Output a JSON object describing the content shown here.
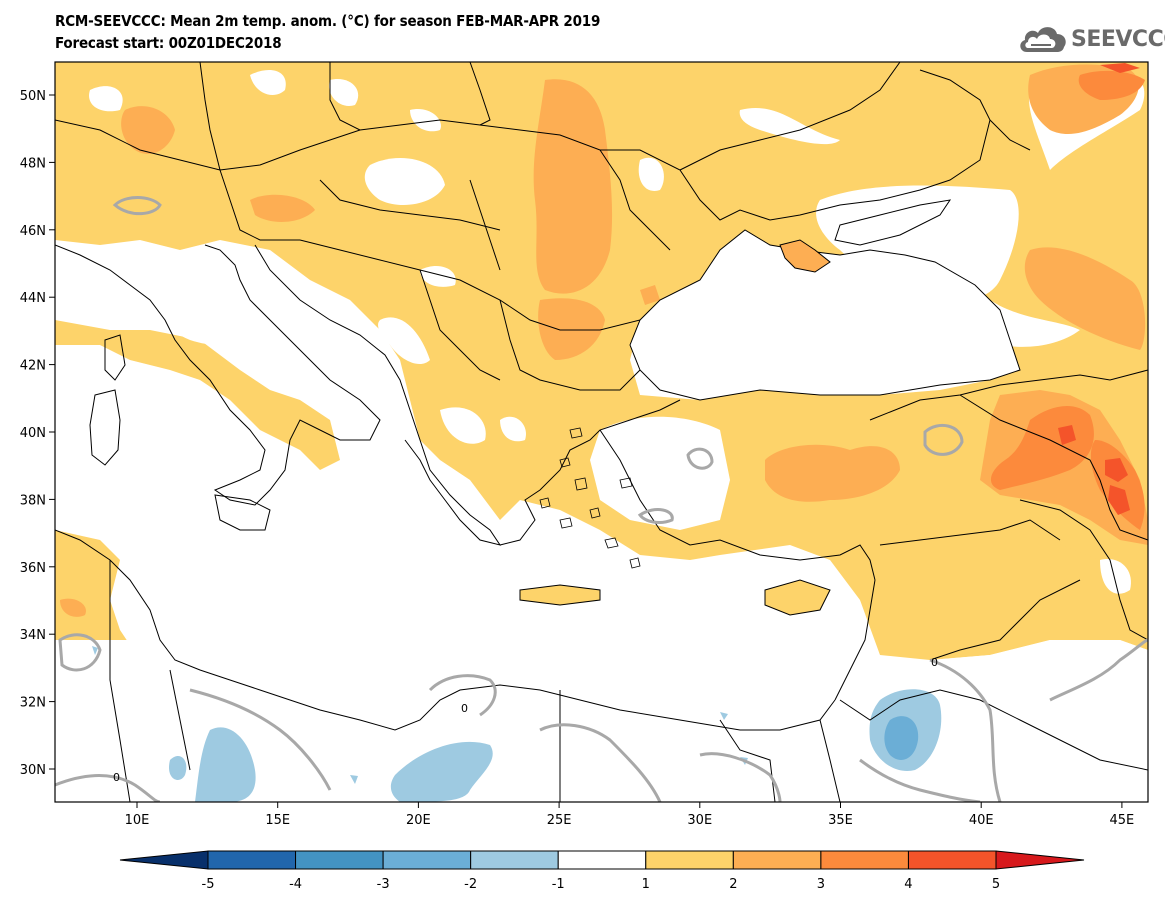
{
  "header": {
    "title_line1": "RCM-SEEVCCC: Mean 2m temp. anom. (°C) for season FEB-MAR-APR 2019",
    "title_line2": "Forecast start: 00Z01DEC2018"
  },
  "logo": {
    "text": "SEEVCCC",
    "icon": "cloud-icon"
  },
  "map": {
    "lon_ticks": [
      "10E",
      "15E",
      "20E",
      "25E",
      "30E",
      "35E",
      "40E",
      "45E"
    ],
    "lat_ticks": [
      "50N",
      "48N",
      "46N",
      "44N",
      "42N",
      "40N",
      "38N",
      "36N",
      "34N",
      "32N",
      "30N"
    ],
    "contour_label": "0"
  },
  "colorbar": {
    "ticks": [
      "-5",
      "-4",
      "-3",
      "-2",
      "-1",
      "1",
      "2",
      "3",
      "4",
      "5"
    ],
    "colors": [
      "#08306b",
      "#2166ac",
      "#4393c3",
      "#6baed6",
      "#9ecae1",
      "#ffffff",
      "#fdd36a",
      "#fdae53",
      "#fc8a3c",
      "#f4542a",
      "#d7191c"
    ]
  }
}
